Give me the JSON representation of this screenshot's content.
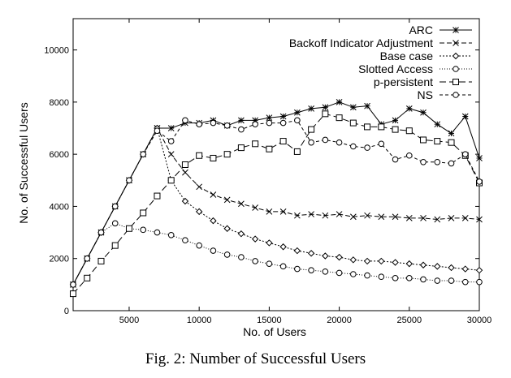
{
  "caption": "Fig. 2: Number of Successful Users",
  "chart_data": {
    "type": "line",
    "xlabel": "No. of Users",
    "ylabel": "No. of Successful Users",
    "xlim": [
      1000,
      30000
    ],
    "ylim": [
      0,
      11200
    ],
    "xticks": [
      5000,
      10000,
      15000,
      20000,
      25000,
      30000
    ],
    "yticks": [
      0,
      2000,
      4000,
      6000,
      8000,
      10000
    ],
    "legend_position": "top-right",
    "grid": false,
    "x": [
      1000,
      2000,
      3000,
      4000,
      5000,
      6000,
      7000,
      8000,
      9000,
      10000,
      11000,
      12000,
      13000,
      14000,
      15000,
      16000,
      17000,
      18000,
      19000,
      20000,
      21000,
      22000,
      23000,
      24000,
      25000,
      26000,
      27000,
      28000,
      29000,
      30000
    ],
    "series": [
      {
        "name": "ARC",
        "marker": "asterisk",
        "dash": "",
        "values": [
          1000,
          2000,
          3000,
          4000,
          5000,
          6000,
          7000,
          7000,
          7200,
          7200,
          7300,
          7100,
          7300,
          7300,
          7400,
          7450,
          7600,
          7750,
          7800,
          8000,
          7800,
          7850,
          7150,
          7300,
          7750,
          7600,
          7150,
          6800,
          7450,
          5850
        ]
      },
      {
        "name": "Backoff Indicator Adjustment",
        "marker": "x",
        "dash": "6,3",
        "values": [
          1000,
          2000,
          3000,
          4000,
          5000,
          6000,
          7000,
          6000,
          5300,
          4750,
          4450,
          4250,
          4100,
          3950,
          3800,
          3800,
          3650,
          3700,
          3650,
          3700,
          3600,
          3650,
          3600,
          3600,
          3550,
          3550,
          3500,
          3550,
          3550,
          3500
        ]
      },
      {
        "name": "Base case",
        "marker": "diamond",
        "dash": "2,2",
        "values": [
          1000,
          2000,
          3000,
          4000,
          5000,
          6000,
          7000,
          5000,
          4200,
          3800,
          3450,
          3150,
          2950,
          2750,
          2600,
          2450,
          2300,
          2200,
          2100,
          2050,
          1950,
          1900,
          1900,
          1850,
          1800,
          1750,
          1700,
          1650,
          1600,
          1550
        ]
      },
      {
        "name": "Slotted Access",
        "marker": "circle",
        "dash": "1,2",
        "values": [
          1000,
          2000,
          3000,
          3350,
          3150,
          3100,
          3000,
          2900,
          2700,
          2500,
          2300,
          2150,
          2050,
          1900,
          1800,
          1700,
          1600,
          1550,
          1500,
          1450,
          1400,
          1350,
          1300,
          1250,
          1250,
          1200,
          1150,
          1150,
          1100,
          1100
        ]
      },
      {
        "name": "p-persistent",
        "marker": "square",
        "dash": "8,4",
        "values": [
          650,
          1250,
          1900,
          2500,
          3150,
          3750,
          4400,
          5000,
          5600,
          5950,
          5850,
          6000,
          6250,
          6400,
          6200,
          6500,
          6100,
          6950,
          7550,
          7400,
          7200,
          7050,
          7050,
          6950,
          6900,
          6550,
          6500,
          6450,
          5950,
          4900
        ]
      },
      {
        "name": "NS",
        "marker": "circle",
        "dash": "4,3",
        "values": [
          1000,
          2000,
          3000,
          4000,
          5000,
          6000,
          6900,
          6500,
          7300,
          7150,
          7200,
          7100,
          6950,
          7150,
          7200,
          7200,
          7300,
          6450,
          6550,
          6450,
          6300,
          6250,
          6400,
          5800,
          5950,
          5700,
          5700,
          5650,
          6000,
          4950
        ]
      }
    ]
  }
}
